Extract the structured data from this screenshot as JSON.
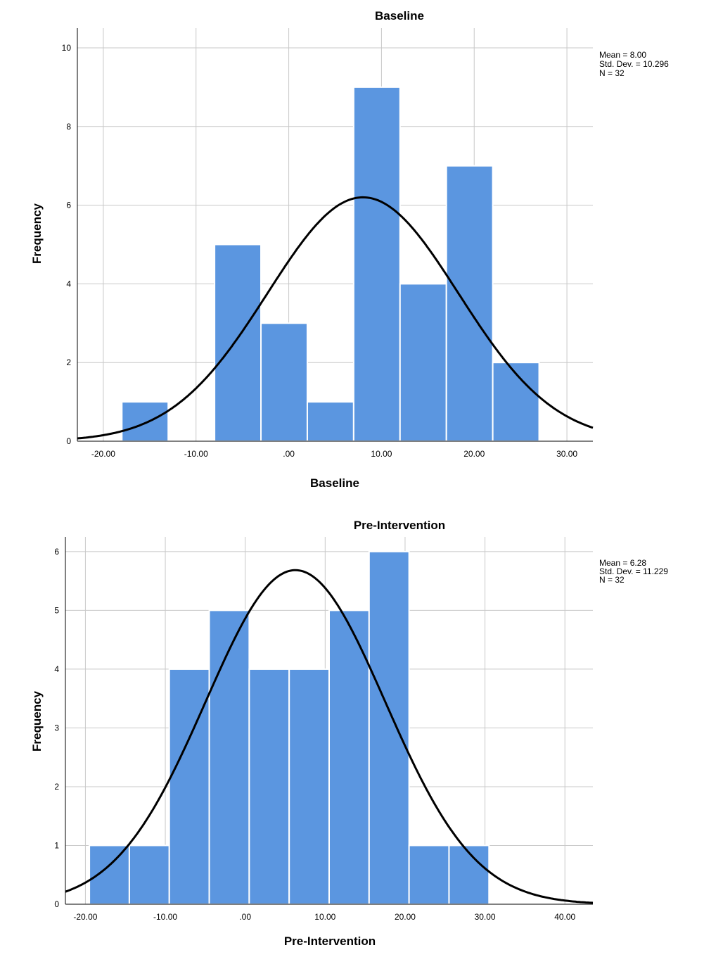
{
  "chart_data": [
    {
      "type": "bar",
      "title": "Baseline",
      "xlabel": "Baseline",
      "ylabel": "Frequency",
      "bin_edges": [
        -18,
        -13,
        -8,
        -3,
        2,
        7,
        12,
        17,
        22,
        27
      ],
      "values": [
        1,
        0,
        5,
        3,
        1,
        9,
        4,
        7,
        2
      ],
      "xlim": [
        -22.8,
        32.8
      ],
      "ylim": [
        0,
        10.5
      ],
      "x_ticks": [
        -20,
        -10,
        0,
        10,
        20,
        30
      ],
      "x_tick_labels": [
        "-20.00",
        "-10.00",
        ".00",
        "10.00",
        "20.00",
        "30.00"
      ],
      "y_ticks": [
        0,
        2,
        4,
        6,
        8,
        10
      ],
      "y_tick_labels": [
        "0",
        "2",
        "4",
        "6",
        "8",
        "10"
      ],
      "normal_curve": {
        "mean": 8.0,
        "sd": 10.296,
        "n": 32
      },
      "stats": [
        "Mean = 8.00",
        "Std. Dev. = 10.296",
        "N = 32"
      ],
      "grid": true
    },
    {
      "type": "bar",
      "title": "Pre-Intervention",
      "xlabel": "Pre-Intervention",
      "ylabel": "Frequency",
      "bin_edges": [
        -19.5,
        -14.5,
        -9.5,
        -4.5,
        0.5,
        5.5,
        10.5,
        15.5,
        20.5,
        25.5,
        30.5
      ],
      "values": [
        1,
        1,
        4,
        5,
        4,
        4,
        5,
        6,
        1,
        1
      ],
      "xlim": [
        -22.5,
        43.5
      ],
      "ylim": [
        0,
        6.25
      ],
      "x_ticks": [
        -20,
        -10,
        0,
        10,
        20,
        30,
        40
      ],
      "x_tick_labels": [
        "-20.00",
        "-10.00",
        ".00",
        "10.00",
        "20.00",
        "30.00",
        "40.00"
      ],
      "y_ticks": [
        0,
        1,
        2,
        3,
        4,
        5,
        6
      ],
      "y_tick_labels": [
        "0",
        "1",
        "2",
        "3",
        "4",
        "5",
        "6"
      ],
      "normal_curve": {
        "mean": 6.28,
        "sd": 11.229,
        "n": 32
      },
      "stats": [
        "Mean = 6.28",
        "Std. Dev. = 11.229",
        "N = 32"
      ],
      "grid": true
    }
  ],
  "colors": {
    "bar": "#5b96e0",
    "bar_edge": "#ffffff",
    "grid": "#c8c8c8",
    "axis": "#000000",
    "curve": "#000000"
  }
}
